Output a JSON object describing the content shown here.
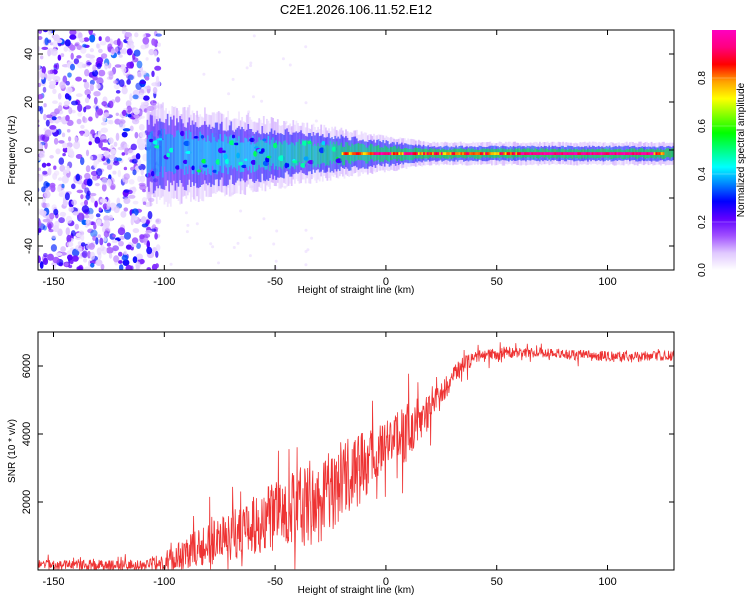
{
  "figure_title": "C2E1.2026.106.11.52.E12",
  "chart_data": [
    {
      "type": "heatmap",
      "title": "C2E1.2026.106.11.52.E12",
      "xlabel": "Height of straight line (km)",
      "ylabel": "Frequency (Hz)",
      "xlim": [
        -157,
        130
      ],
      "ylim": [
        -50,
        50
      ],
      "xticks": [
        -150,
        -100,
        -50,
        0,
        50,
        100
      ],
      "yticks": [
        -40,
        -20,
        0,
        20,
        40
      ],
      "grid": false,
      "colorbar": {
        "label": "Normalized spectral amplitude",
        "range": [
          0,
          1
        ],
        "ticks": [
          0.0,
          0.2,
          0.4,
          0.6,
          0.8
        ],
        "colors": [
          "#ffffff",
          "#e0c8ff",
          "#a050ff",
          "#6000ff",
          "#0000ff",
          "#0080ff",
          "#00ffff",
          "#00ff80",
          "#00ff00",
          "#80ff00",
          "#ffff00",
          "#ffa000",
          "#ff0000",
          "#ff0080",
          "#ff00c0"
        ]
      },
      "features": {
        "noise_region_x": [
          -157,
          -100
        ],
        "signal_line_frequency": -1.5,
        "signal_onset_x": -100,
        "peak_amplitude_x": [
          -20,
          125
        ]
      }
    },
    {
      "type": "line",
      "xlabel": "Height of straight line (km)",
      "ylabel": "SNR (10 * v/v)",
      "xlim": [
        -157,
        130
      ],
      "ylim": [
        0,
        7000
      ],
      "xticks": [
        -150,
        -100,
        -50,
        0,
        50,
        100
      ],
      "yticks": [
        2000,
        4000,
        6000
      ],
      "grid": false,
      "series_color": "#ee3333",
      "trend_x": [
        -157,
        -110,
        -100,
        -90,
        -80,
        -70,
        -60,
        -50,
        -40,
        -30,
        -20,
        -10,
        -5,
        0,
        5,
        10,
        15,
        20,
        25,
        30,
        35,
        40,
        50,
        60,
        70,
        80,
        90,
        100,
        110,
        120,
        130
      ],
      "trend_y": [
        150,
        150,
        250,
        500,
        750,
        1000,
        1300,
        1600,
        1800,
        2100,
        2600,
        3100,
        3500,
        3700,
        3900,
        4100,
        4300,
        4700,
        5200,
        5700,
        6050,
        6250,
        6350,
        6400,
        6400,
        6350,
        6300,
        6300,
        6250,
        6300,
        6300
      ],
      "noise_x": [
        -157,
        -110,
        -100,
        -80,
        -60,
        -45,
        -30,
        -20,
        -10,
        0,
        10,
        20,
        30,
        40,
        60,
        90,
        130
      ],
      "noise_amplitude": [
        150,
        150,
        300,
        650,
        850,
        1150,
        1300,
        1200,
        1050,
        650,
        950,
        550,
        300,
        200,
        150,
        150,
        150
      ]
    }
  ]
}
